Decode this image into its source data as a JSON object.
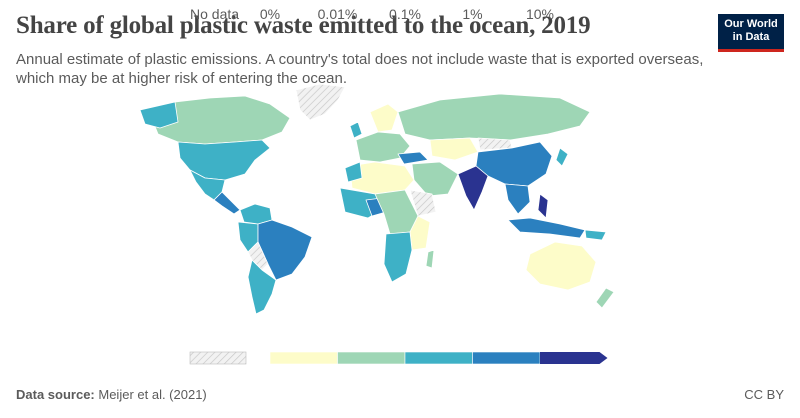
{
  "header": {
    "title": "Share of global plastic waste emitted to the ocean, 2019",
    "subtitle": "Annual estimate of plastic emissions. A country's total does not include waste that is exported overseas, which may be at higher risk of entering the ocean.",
    "logo_line1": "Our World",
    "logo_line2": "in Data"
  },
  "legend": {
    "no_data_label": "No data",
    "bins": [
      {
        "label": "0%",
        "color": "#fdfcc9"
      },
      {
        "label": "0.01%",
        "color": "#9ed6b5"
      },
      {
        "label": "0.1%",
        "color": "#3eb1c6"
      },
      {
        "label": "1%",
        "color": "#2b80bf"
      },
      {
        "label": "10%",
        "color": "#2a3390"
      }
    ]
  },
  "colors": {
    "no_data": "#e4e4e4",
    "border": "#ffffff",
    "text": "#5b5b5b",
    "logo_bg": "#002147",
    "logo_accent": "#ce261e"
  },
  "footer": {
    "source_label": "Data source:",
    "source_value": "Meijer et al. (2021)",
    "license": "CC BY"
  }
}
